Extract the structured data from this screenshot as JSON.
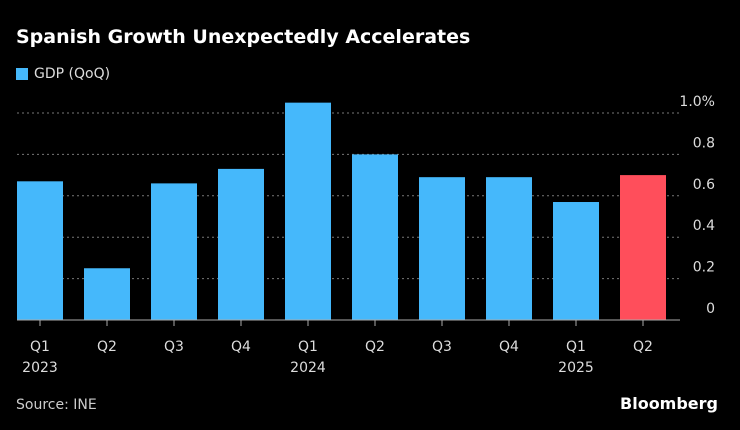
{
  "chart_data": {
    "type": "bar",
    "title": "Spanish Growth Unexpectedly Accelerates",
    "legend": [
      "GDP (QoQ)"
    ],
    "categories": [
      "Q1 2023",
      "Q2 2023",
      "Q3 2023",
      "Q4 2023",
      "Q1 2024",
      "Q2 2024",
      "Q3 2024",
      "Q4 2024",
      "Q1 2025",
      "Q2 2025"
    ],
    "x_tick_labels": [
      [
        "Q1",
        "2023"
      ],
      [
        "Q2",
        ""
      ],
      [
        "Q3",
        ""
      ],
      [
        "Q4",
        ""
      ],
      [
        "Q1",
        "2024"
      ],
      [
        "Q2",
        ""
      ],
      [
        "Q3",
        ""
      ],
      [
        "Q4",
        ""
      ],
      [
        "Q1",
        "2025"
      ],
      [
        "Q2",
        ""
      ]
    ],
    "series": [
      {
        "name": "GDP (QoQ)",
        "values": [
          0.67,
          0.25,
          0.66,
          0.73,
          1.05,
          0.8,
          0.69,
          0.69,
          0.57,
          0.7
        ]
      }
    ],
    "highlight_index": 9,
    "colors": {
      "bar": "#45b8fb",
      "highlight": "#ff4e5b"
    },
    "ylim": [
      0,
      1.0
    ],
    "y_ticks": [
      0,
      0.2,
      0.4,
      0.6,
      0.8,
      1.0
    ],
    "y_tick_labels": [
      "0",
      "0.2",
      "0.4",
      "0.6",
      "0.8",
      "1.0%"
    ],
    "grid": true,
    "legend_position": "top-left"
  },
  "footer": {
    "source": "Source: INE",
    "brand": "Bloomberg"
  }
}
